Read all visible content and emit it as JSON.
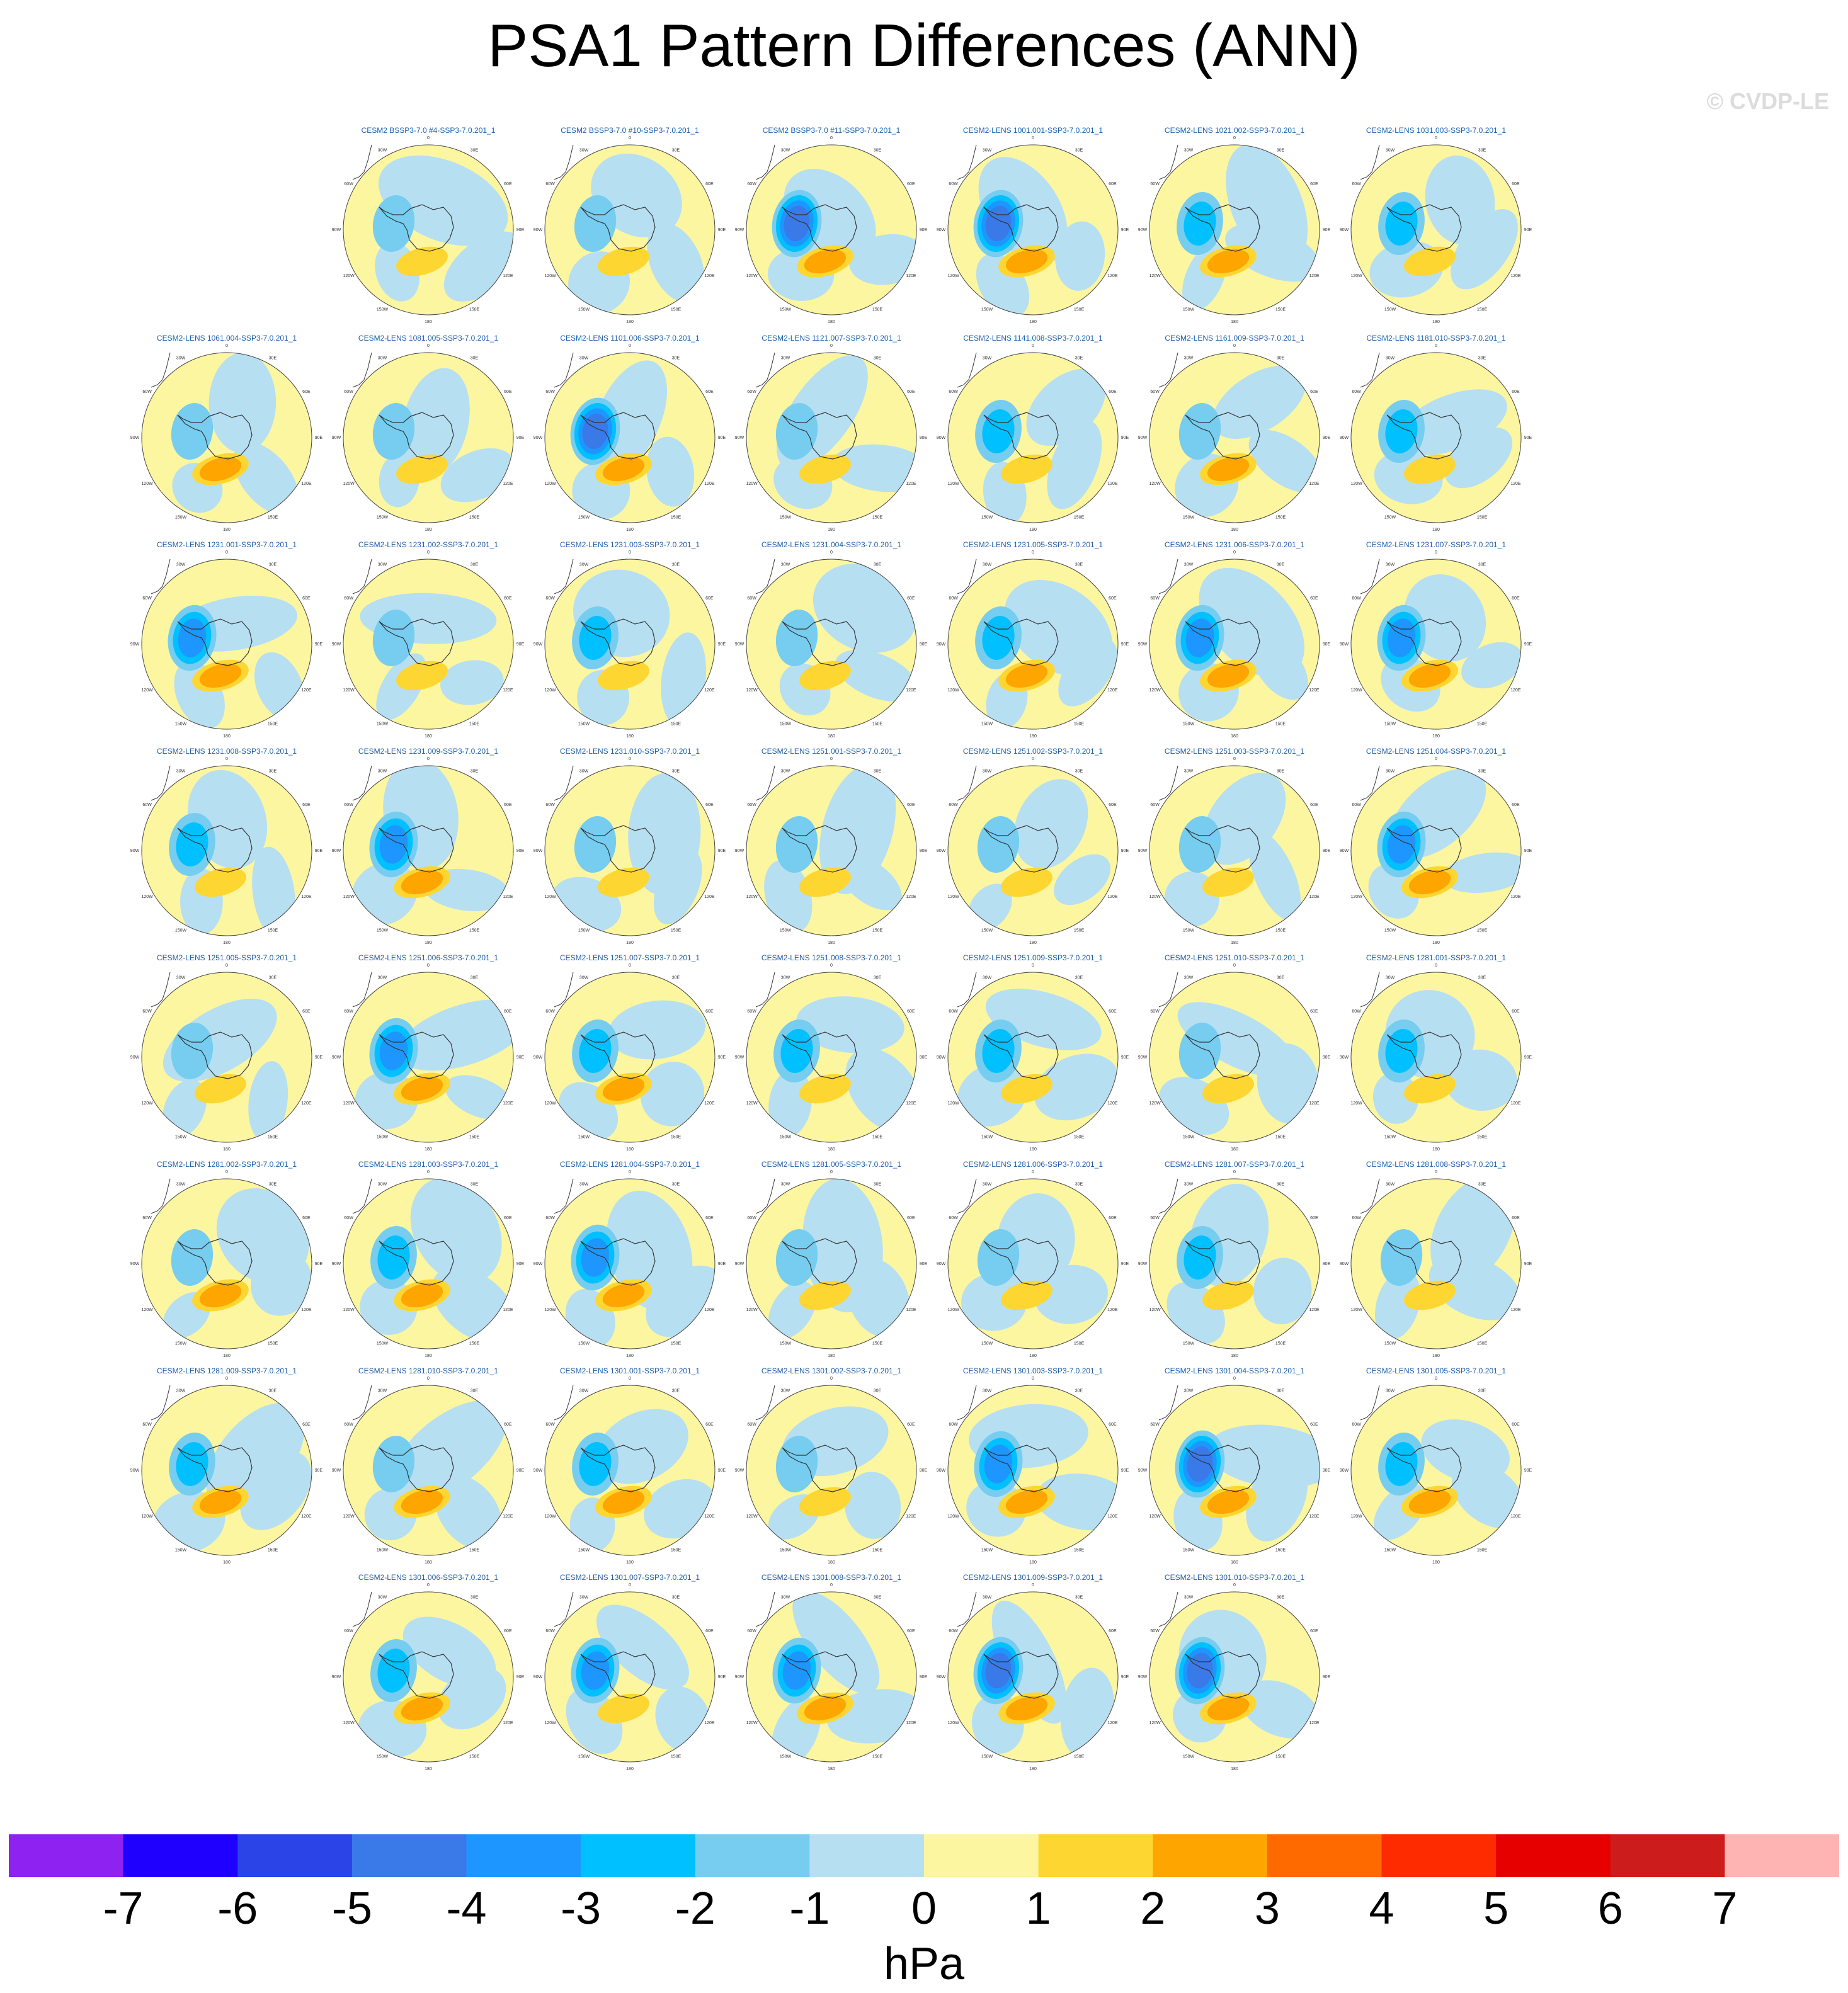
{
  "title": "PSA1 Pattern Differences (ANN)",
  "watermark": "© CVDP-LE",
  "colorbar": {
    "units": "hPa",
    "labels": [
      "-7",
      "-6",
      "-5",
      "-4",
      "-3",
      "-2",
      "-1",
      "0",
      "1",
      "2",
      "3",
      "4",
      "5",
      "6",
      "7"
    ],
    "colors": [
      "#8e22f0",
      "#1f00ff",
      "#2a44e8",
      "#3a79e8",
      "#1e96ff",
      "#00c0ff",
      "#76cdf0",
      "#b7dff2",
      "#fdf6a0",
      "#fed631",
      "#fea500",
      "#fe6a00",
      "#fe2a00",
      "#e60000",
      "#cc1c1c",
      "#ffb4b4"
    ]
  },
  "chart_data": {
    "type": "heatmap",
    "title": "PSA1 Pattern Differences (ANN)",
    "units": "hPa",
    "value_range": [
      -7,
      7
    ],
    "projection": "south polar stereographic",
    "lon_labels": [
      "0",
      "30E",
      "60E",
      "90E",
      "120E",
      "150E",
      "180",
      "150W",
      "120W",
      "90W",
      "60W",
      "30W"
    ],
    "panels": [
      {
        "label": "CESM2 BSSP3-7.0 #4-SSP3-7.0.201_1",
        "min": -1,
        "max": 1
      },
      {
        "label": "CESM2 BSSP3-7.0 #10-SSP3-7.0.201_1",
        "min": -1,
        "max": 1
      },
      {
        "label": "CESM2 BSSP3-7.0 #11-SSP3-7.0.201_1",
        "min": -4,
        "max": 2
      },
      {
        "label": "CESM2-LENS 1001.001-SSP3-7.0.201_1",
        "min": -4,
        "max": 2
      },
      {
        "label": "CESM2-LENS 1021.002-SSP3-7.0.201_1",
        "min": -2,
        "max": 2
      },
      {
        "label": "CESM2-LENS 1031.003-SSP3-7.0.201_1",
        "min": -2,
        "max": 1
      },
      {
        "label": "CESM2-LENS 1061.004-SSP3-7.0.201_1",
        "min": -1,
        "max": 2
      },
      {
        "label": "CESM2-LENS 1081.005-SSP3-7.0.201_1",
        "min": -1,
        "max": 1
      },
      {
        "label": "CESM2-LENS 1101.006-SSP3-7.0.201_1",
        "min": -4,
        "max": 2
      },
      {
        "label": "CESM2-LENS 1121.007-SSP3-7.0.201_1",
        "min": -1,
        "max": 1
      },
      {
        "label": "CESM2-LENS 1141.008-SSP3-7.0.201_1",
        "min": -2,
        "max": 1
      },
      {
        "label": "CESM2-LENS 1161.009-SSP3-7.0.201_1",
        "min": -1,
        "max": 2
      },
      {
        "label": "CESM2-LENS 1181.010-SSP3-7.0.201_1",
        "min": -2,
        "max": 1
      },
      {
        "label": "CESM2-LENS 1231.001-SSP3-7.0.201_1",
        "min": -3,
        "max": 2
      },
      {
        "label": "CESM2-LENS 1231.002-SSP3-7.0.201_1",
        "min": -1,
        "max": 1
      },
      {
        "label": "CESM2-LENS 1231.003-SSP3-7.0.201_1",
        "min": -2,
        "max": 1
      },
      {
        "label": "CESM2-LENS 1231.004-SSP3-7.0.201_1",
        "min": -1,
        "max": 1
      },
      {
        "label": "CESM2-LENS 1231.005-SSP3-7.0.201_1",
        "min": -2,
        "max": 2
      },
      {
        "label": "CESM2-LENS 1231.006-SSP3-7.0.201_1",
        "min": -3,
        "max": 2
      },
      {
        "label": "CESM2-LENS 1231.007-SSP3-7.0.201_1",
        "min": -3,
        "max": 2
      },
      {
        "label": "CESM2-LENS 1231.008-SSP3-7.0.201_1",
        "min": -2,
        "max": 1
      },
      {
        "label": "CESM2-LENS 1231.009-SSP3-7.0.201_1",
        "min": -3,
        "max": 2
      },
      {
        "label": "CESM2-LENS 1231.010-SSP3-7.0.201_1",
        "min": -1,
        "max": 1
      },
      {
        "label": "CESM2-LENS 1251.001-SSP3-7.0.201_1",
        "min": -1,
        "max": 1
      },
      {
        "label": "CESM2-LENS 1251.002-SSP3-7.0.201_1",
        "min": -1,
        "max": 1
      },
      {
        "label": "CESM2-LENS 1251.003-SSP3-7.0.201_1",
        "min": -1,
        "max": 1
      },
      {
        "label": "CESM2-LENS 1251.004-SSP3-7.0.201_1",
        "min": -3,
        "max": 2
      },
      {
        "label": "CESM2-LENS 1251.005-SSP3-7.0.201_1",
        "min": -1,
        "max": 1
      },
      {
        "label": "CESM2-LENS 1251.006-SSP3-7.0.201_1",
        "min": -3,
        "max": 2
      },
      {
        "label": "CESM2-LENS 1251.007-SSP3-7.0.201_1",
        "min": -2,
        "max": 2
      },
      {
        "label": "CESM2-LENS 1251.008-SSP3-7.0.201_1",
        "min": -2,
        "max": 1
      },
      {
        "label": "CESM2-LENS 1251.009-SSP3-7.0.201_1",
        "min": -2,
        "max": 1
      },
      {
        "label": "CESM2-LENS 1251.010-SSP3-7.0.201_1",
        "min": -1,
        "max": 1
      },
      {
        "label": "CESM2-LENS 1281.001-SSP3-7.0.201_1",
        "min": -2,
        "max": 1
      },
      {
        "label": "CESM2-LENS 1281.002-SSP3-7.0.201_1",
        "min": -1,
        "max": 2
      },
      {
        "label": "CESM2-LENS 1281.003-SSP3-7.0.201_1",
        "min": -2,
        "max": 2
      },
      {
        "label": "CESM2-LENS 1281.004-SSP3-7.0.201_1",
        "min": -3,
        "max": 2
      },
      {
        "label": "CESM2-LENS 1281.005-SSP3-7.0.201_1",
        "min": -1,
        "max": 1
      },
      {
        "label": "CESM2-LENS 1281.006-SSP3-7.0.201_1",
        "min": -1,
        "max": 1
      },
      {
        "label": "CESM2-LENS 1281.007-SSP3-7.0.201_1",
        "min": -2,
        "max": 1
      },
      {
        "label": "CESM2-LENS 1281.008-SSP3-7.0.201_1",
        "min": -1,
        "max": 1
      },
      {
        "label": "CESM2-LENS 1281.009-SSP3-7.0.201_1",
        "min": -2,
        "max": 2
      },
      {
        "label": "CESM2-LENS 1281.010-SSP3-7.0.201_1",
        "min": -1,
        "max": 2
      },
      {
        "label": "CESM2-LENS 1301.001-SSP3-7.0.201_1",
        "min": -2,
        "max": 2
      },
      {
        "label": "CESM2-LENS 1301.002-SSP3-7.0.201_1",
        "min": -1,
        "max": 1
      },
      {
        "label": "CESM2-LENS 1301.003-SSP3-7.0.201_1",
        "min": -3,
        "max": 2
      },
      {
        "label": "CESM2-LENS 1301.004-SSP3-7.0.201_1",
        "min": -4,
        "max": 2
      },
      {
        "label": "CESM2-LENS 1301.005-SSP3-7.0.201_1",
        "min": -2,
        "max": 2
      },
      {
        "label": "CESM2-LENS 1301.006-SSP3-7.0.201_1",
        "min": -2,
        "max": 2
      },
      {
        "label": "CESM2-LENS 1301.007-SSP3-7.0.201_1",
        "min": -3,
        "max": 1
      },
      {
        "label": "CESM2-LENS 1301.008-SSP3-7.0.201_1",
        "min": -3,
        "max": 2
      },
      {
        "label": "CESM2-LENS 1301.009-SSP3-7.0.201_1",
        "min": -4,
        "max": 2
      },
      {
        "label": "CESM2-LENS 1301.010-SSP3-7.0.201_1",
        "min": -4,
        "max": 2
      }
    ]
  }
}
